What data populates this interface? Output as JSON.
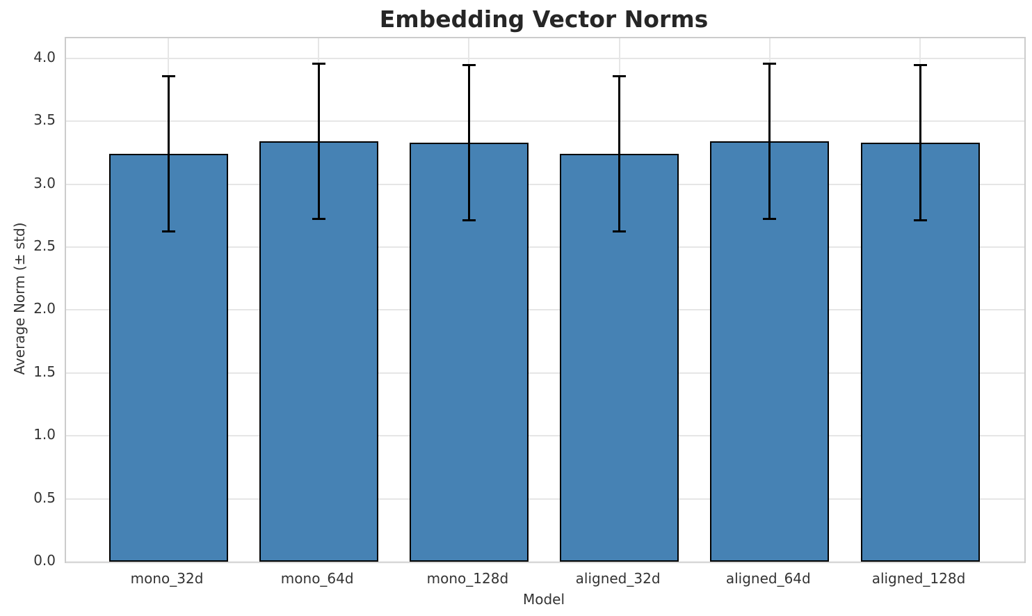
{
  "chart_data": {
    "type": "bar",
    "title": "Embedding Vector Norms",
    "xlabel": "Model",
    "ylabel": "Average Norm (± std)",
    "categories": [
      "mono_32d",
      "mono_64d",
      "mono_128d",
      "aligned_32d",
      "aligned_64d",
      "aligned_128d"
    ],
    "values": [
      3.24,
      3.34,
      3.33,
      3.24,
      3.34,
      3.33
    ],
    "errors": [
      0.62,
      0.62,
      0.62,
      0.62,
      0.62,
      0.62
    ],
    "error_style": "plus-minus std, black caps",
    "ylim": [
      0,
      4.16
    ],
    "yticks": [
      0.0,
      0.5,
      1.0,
      1.5,
      2.0,
      2.5,
      3.0,
      3.5,
      4.0
    ],
    "ytick_labels": [
      "0.0",
      "0.5",
      "1.0",
      "1.5",
      "2.0",
      "2.5",
      "3.0",
      "3.5",
      "4.0"
    ],
    "grid": "both, light gray",
    "legend": "none",
    "colors": {
      "bar_fill": "#4682B4",
      "bar_edge": "#000000",
      "error_bar": "#000000",
      "grid": "#e6e6e6",
      "spine": "#cccccc",
      "title_text": "#262626",
      "label_text": "#333333",
      "background": "#ffffff"
    }
  }
}
